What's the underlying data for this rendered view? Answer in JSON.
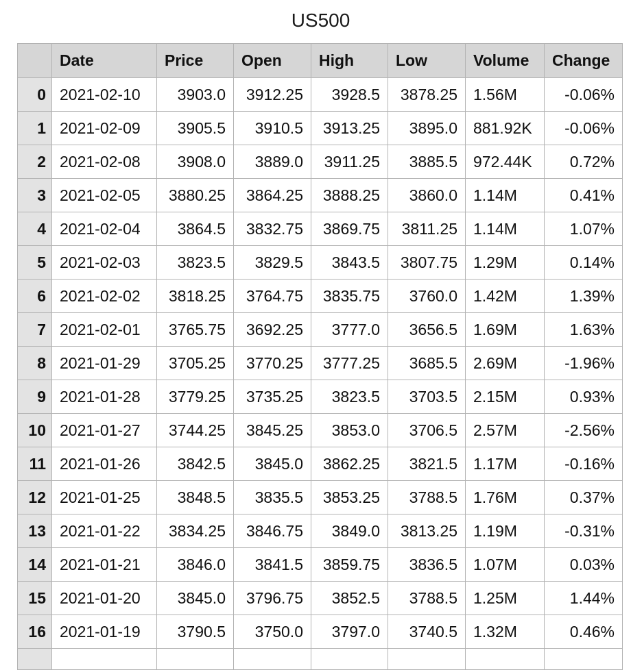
{
  "title": "US500",
  "columns": [
    "Date",
    "Price",
    "Open",
    "High",
    "Low",
    "Volume",
    "Change"
  ],
  "rows": [
    {
      "index": "0",
      "date": "2021-02-10",
      "price": "3903.0",
      "open": "3912.25",
      "high": "3928.5",
      "low": "3878.25",
      "volume": "1.56M",
      "change": "-0.06%"
    },
    {
      "index": "1",
      "date": "2021-02-09",
      "price": "3905.5",
      "open": "3910.5",
      "high": "3913.25",
      "low": "3895.0",
      "volume": "881.92K",
      "change": "-0.06%"
    },
    {
      "index": "2",
      "date": "2021-02-08",
      "price": "3908.0",
      "open": "3889.0",
      "high": "3911.25",
      "low": "3885.5",
      "volume": "972.44K",
      "change": "0.72%"
    },
    {
      "index": "3",
      "date": "2021-02-05",
      "price": "3880.25",
      "open": "3864.25",
      "high": "3888.25",
      "low": "3860.0",
      "volume": "1.14M",
      "change": "0.41%"
    },
    {
      "index": "4",
      "date": "2021-02-04",
      "price": "3864.5",
      "open": "3832.75",
      "high": "3869.75",
      "low": "3811.25",
      "volume": "1.14M",
      "change": "1.07%"
    },
    {
      "index": "5",
      "date": "2021-02-03",
      "price": "3823.5",
      "open": "3829.5",
      "high": "3843.5",
      "low": "3807.75",
      "volume": "1.29M",
      "change": "0.14%"
    },
    {
      "index": "6",
      "date": "2021-02-02",
      "price": "3818.25",
      "open": "3764.75",
      "high": "3835.75",
      "low": "3760.0",
      "volume": "1.42M",
      "change": "1.39%"
    },
    {
      "index": "7",
      "date": "2021-02-01",
      "price": "3765.75",
      "open": "3692.25",
      "high": "3777.0",
      "low": "3656.5",
      "volume": "1.69M",
      "change": "1.63%"
    },
    {
      "index": "8",
      "date": "2021-01-29",
      "price": "3705.25",
      "open": "3770.25",
      "high": "3777.25",
      "low": "3685.5",
      "volume": "2.69M",
      "change": "-1.96%"
    },
    {
      "index": "9",
      "date": "2021-01-28",
      "price": "3779.25",
      "open": "3735.25",
      "high": "3823.5",
      "low": "3703.5",
      "volume": "2.15M",
      "change": "0.93%"
    },
    {
      "index": "10",
      "date": "2021-01-27",
      "price": "3744.25",
      "open": "3845.25",
      "high": "3853.0",
      "low": "3706.5",
      "volume": "2.57M",
      "change": "-2.56%"
    },
    {
      "index": "11",
      "date": "2021-01-26",
      "price": "3842.5",
      "open": "3845.0",
      "high": "3862.25",
      "low": "3821.5",
      "volume": "1.17M",
      "change": "-0.16%"
    },
    {
      "index": "12",
      "date": "2021-01-25",
      "price": "3848.5",
      "open": "3835.5",
      "high": "3853.25",
      "low": "3788.5",
      "volume": "1.76M",
      "change": "0.37%"
    },
    {
      "index": "13",
      "date": "2021-01-22",
      "price": "3834.25",
      "open": "3846.75",
      "high": "3849.0",
      "low": "3813.25",
      "volume": "1.19M",
      "change": "-0.31%"
    },
    {
      "index": "14",
      "date": "2021-01-21",
      "price": "3846.0",
      "open": "3841.5",
      "high": "3859.75",
      "low": "3836.5",
      "volume": "1.07M",
      "change": "0.03%"
    },
    {
      "index": "15",
      "date": "2021-01-20",
      "price": "3845.0",
      "open": "3796.75",
      "high": "3852.5",
      "low": "3788.5",
      "volume": "1.25M",
      "change": "1.44%"
    },
    {
      "index": "16",
      "date": "2021-01-19",
      "price": "3790.5",
      "open": "3750.0",
      "high": "3797.0",
      "low": "3740.5",
      "volume": "1.32M",
      "change": "0.46%"
    }
  ],
  "colors": {
    "header_bg": "#d6d6d6",
    "index_bg": "#e3e3e3",
    "border": "#b3b3b3"
  }
}
